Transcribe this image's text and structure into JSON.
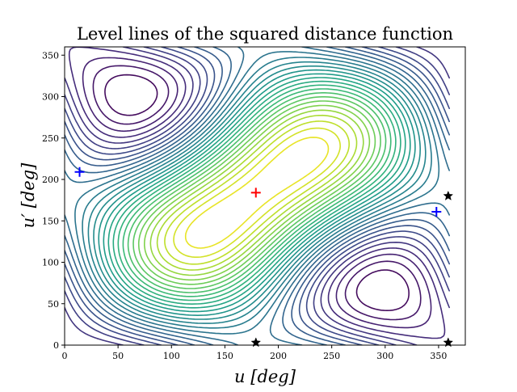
{
  "chart_data": {
    "type": "contour",
    "title": "Level lines of the squared distance function",
    "xlabel": "u [deg]",
    "ylabel": "u′ [deg]",
    "xlim": [
      0,
      375
    ],
    "ylim": [
      0,
      360
    ],
    "xticks": [
      0,
      50,
      100,
      150,
      200,
      250,
      300,
      350
    ],
    "yticks": [
      0,
      50,
      100,
      150,
      200,
      250,
      300,
      350
    ],
    "grid": false,
    "colormap": "viridis",
    "contour_levels": 30,
    "contour_field": {
      "center": [
        180,
        184
      ],
      "secondary_minima": [
        [
          20,
          250
        ],
        [
          340,
          115
        ]
      ]
    },
    "markers": [
      {
        "label": "red-plus",
        "shape": "plus",
        "color": "#ff0000",
        "x": 179,
        "y": 184
      },
      {
        "label": "blue-plus-left",
        "shape": "plus",
        "color": "#0000ff",
        "x": 14,
        "y": 209
      },
      {
        "label": "blue-plus-right",
        "shape": "plus",
        "color": "#0000ff",
        "x": 348,
        "y": 161
      },
      {
        "label": "black-star",
        "shape": "star",
        "color": "#000000",
        "x": 179,
        "y": 3
      },
      {
        "label": "black-star",
        "shape": "star",
        "color": "#000000",
        "x": 359,
        "y": 180
      },
      {
        "label": "black-star",
        "shape": "star",
        "color": "#000000",
        "x": 359,
        "y": 3
      }
    ]
  }
}
